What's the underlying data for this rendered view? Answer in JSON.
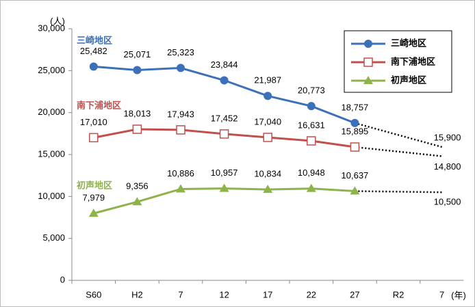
{
  "chart_data": {
    "type": "line",
    "ylabel": "(人)",
    "xlabel": "(年)",
    "categories": [
      "S60",
      "H2",
      "7",
      "12",
      "17",
      "22",
      "27",
      "R2",
      "7"
    ],
    "series": [
      {
        "name": "三崎地区",
        "color": "#3c70b8",
        "marker": "circle",
        "values": [
          25482,
          25071,
          25323,
          23844,
          21987,
          20773,
          18757,
          null,
          15900
        ],
        "value_labels": [
          "25,482",
          "25,071",
          "25,323",
          "23,844",
          "21,987",
          "20,773",
          "18,757",
          null,
          "15,900"
        ]
      },
      {
        "name": "南下浦地区",
        "color": "#c0504d",
        "marker": "square",
        "values": [
          17010,
          18013,
          17943,
          17452,
          17040,
          16631,
          15895,
          null,
          14800
        ],
        "value_labels": [
          "17,010",
          "18,013",
          "17,943",
          "17,452",
          "17,040",
          "16,631",
          "15,895",
          null,
          "14,800"
        ]
      },
      {
        "name": "初声地区",
        "color": "#8db34a",
        "marker": "triangle",
        "values": [
          7979,
          9356,
          10886,
          10957,
          10834,
          10948,
          10637,
          null,
          10500
        ],
        "value_labels": [
          "7,979",
          "9,356",
          "10,886",
          "10,957",
          "10,834",
          "10,948",
          "10,637",
          null,
          "10,500"
        ]
      }
    ],
    "ylim": [
      0,
      30000
    ],
    "yticks": [
      0,
      {
        "value": 5000,
        "label": "5,000"
      },
      {
        "value": 10000,
        "label": "10,000"
      },
      {
        "value": 15000,
        "label": "15,000"
      },
      {
        "value": 20000,
        "label": "20,000"
      },
      {
        "value": 25000,
        "label": "25,000"
      },
      {
        "value": 30000,
        "label": "30,000"
      }
    ],
    "grid": false,
    "legend": "top-right"
  }
}
